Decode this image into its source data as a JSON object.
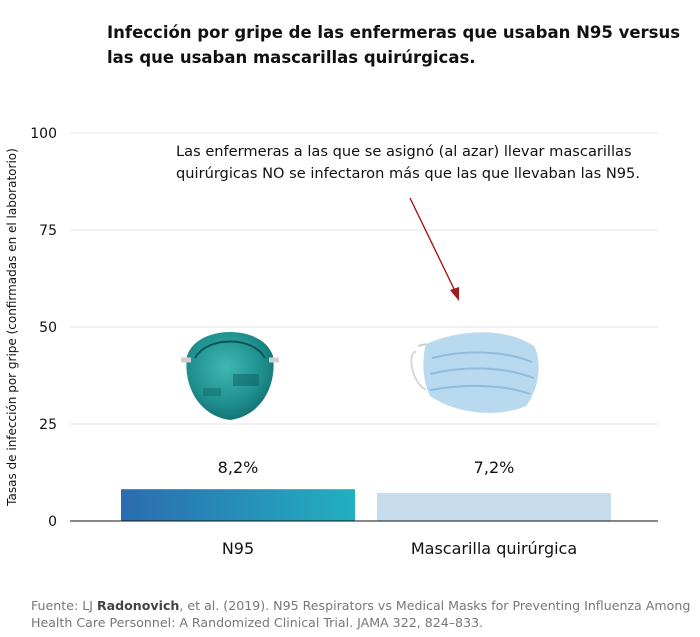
{
  "title": {
    "line1": "Infección por gripe de las enfermeras que usaban N95 versus",
    "line2": "las que usaban mascarillas quirúrgicas."
  },
  "annotation": {
    "line1": "Las enfermeras a las que se asignó (al azar) llevar mascarillas",
    "line2": "quirúrgicas NO se infectaron más que las que llevaban las N95."
  },
  "source": {
    "prefix": "Fuente: LJ ",
    "author": "Radonovich",
    "rest1": ", et al. (2019). N95 Respirators vs Medical Masks for Preventing Influenza Among",
    "line2": "Health Care Personnel: A Randomized Clinical Trial. JAMA 322, 824–833."
  },
  "colors": {
    "n95_bar_start": "#2b6cb0",
    "n95_bar_end": "#22b0c0",
    "surgical_bar": "#c6dcec",
    "arrow": "#a31818",
    "grid": "#e3e3e3",
    "axis": "#111111"
  },
  "icons": {
    "n95": "n95-respirator-icon",
    "surgical": "surgical-mask-icon"
  },
  "chart_data": {
    "type": "bar",
    "title": "Infección por gripe de las enfermeras que usaban N95 versus las que usaban mascarillas quirúrgicas.",
    "categories": [
      "N95",
      "Mascarilla quirúrgica"
    ],
    "values": [
      8.2,
      7.2
    ],
    "data_labels": [
      "8,2%",
      "7,2%"
    ],
    "ylabel": "Tasas de infección por gripe (confirmadas en el laboratorio)",
    "xlabel": "",
    "ylim": [
      0,
      100
    ],
    "yticks": [
      0,
      25,
      50,
      75,
      100
    ],
    "ytick_labels": [
      "0",
      "25",
      "50",
      "75",
      "100"
    ],
    "grid": true
  }
}
